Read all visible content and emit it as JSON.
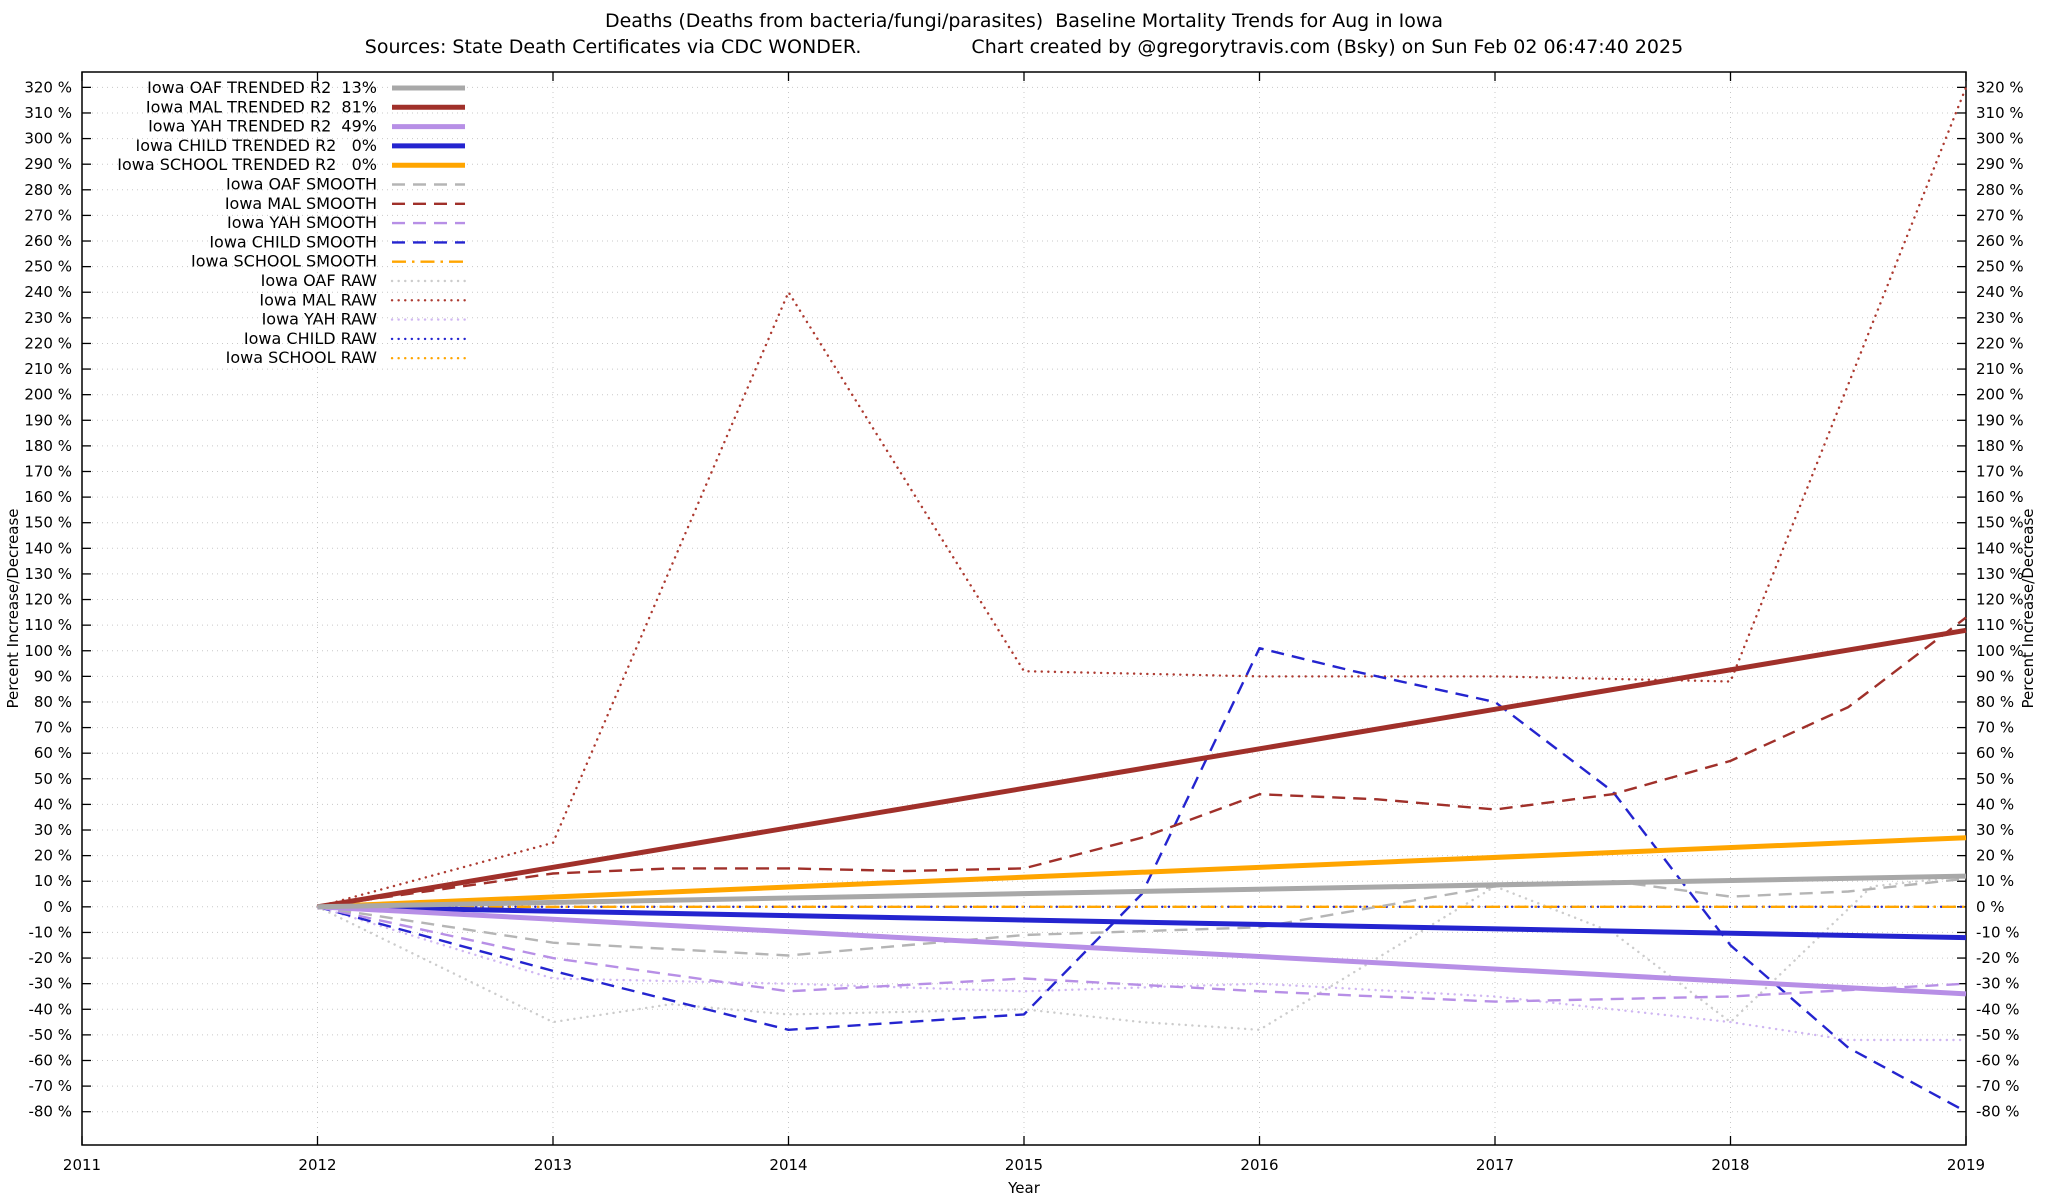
{
  "title": "Deaths (Deaths from bacteria/fungi/parasites)  Baseline Mortality Trends for Aug in Iowa",
  "subtitle_left": "Sources: State Death Certificates via CDC WONDER.",
  "subtitle_right": "Chart created by @gregorytravis.com (Bsky) on Sun Feb 02 06:47:40 2025",
  "chart_data": {
    "type": "line",
    "title": "Deaths (Deaths from bacteria/fungi/parasites)  Baseline Mortality Trends for Aug in Iowa",
    "xlabel": "Year",
    "ylabel_left": "Percent Increase/Decrease",
    "ylabel_right": "Percent Increase/Decrease",
    "xlim": [
      2011,
      2019
    ],
    "ylim": [
      -93,
      326
    ],
    "xticks": [
      2011,
      2012,
      2013,
      2014,
      2015,
      2016,
      2017,
      2018,
      2019
    ],
    "yticks": {
      "start": -80,
      "end": 320,
      "step": 10,
      "suffix": " %"
    },
    "grid": true,
    "legend_position": "top-left",
    "colors": {
      "oaf": "#a8a8a8",
      "oaf_raw": "#cccccc",
      "mal": "#a0302a",
      "mal_raw": "#ad3a30",
      "yah": "#b78fe6",
      "yah_raw": "#cfb6f2",
      "child": "#2424cf",
      "school": "#ffa500",
      "grid": "#c8c8c8",
      "border": "#000000"
    },
    "series": [
      {
        "id": "oaf-trended",
        "label": "Iowa OAF TRENDED R2  13%",
        "color": "#a8a8a8",
        "style": "solid",
        "width": 5,
        "x": [
          2012,
          2019
        ],
        "y": [
          0,
          12
        ]
      },
      {
        "id": "mal-trended",
        "label": "Iowa MAL TRENDED R2  81%",
        "color": "#a0302a",
        "style": "solid",
        "width": 5,
        "x": [
          2012,
          2019
        ],
        "y": [
          0,
          108
        ]
      },
      {
        "id": "yah-trended",
        "label": "Iowa YAH TRENDED R2  49%",
        "color": "#b78fe6",
        "style": "solid",
        "width": 5,
        "x": [
          2012,
          2019
        ],
        "y": [
          0,
          -34
        ]
      },
      {
        "id": "child-trended",
        "label": "Iowa CHILD TRENDED R2   0%",
        "color": "#2424cf",
        "style": "solid",
        "width": 5,
        "x": [
          2012,
          2019
        ],
        "y": [
          0,
          -12
        ]
      },
      {
        "id": "school-trended",
        "label": "Iowa SCHOOL TRENDED R2   0%",
        "color": "#ffa500",
        "style": "solid",
        "width": 5,
        "x": [
          2012,
          2019
        ],
        "y": [
          0,
          27
        ]
      },
      {
        "id": "oaf-smooth",
        "label": "Iowa OAF SMOOTH",
        "color": "#b5b5b5",
        "style": "dash",
        "width": 2.4,
        "x": [
          2012,
          2013,
          2014,
          2015,
          2016,
          2016.5,
          2017,
          2017.5,
          2018,
          2018.5,
          2019
        ],
        "y": [
          0,
          -14,
          -19,
          -11,
          -8,
          0,
          8,
          10,
          4,
          6,
          11
        ]
      },
      {
        "id": "mal-smooth",
        "label": "Iowa MAL SMOOTH",
        "color": "#a0302a",
        "style": "dash",
        "width": 2.4,
        "x": [
          2012,
          2013,
          2013.5,
          2014,
          2014.5,
          2015,
          2015.5,
          2016,
          2016.5,
          2017,
          2017.5,
          2018,
          2018.5,
          2019
        ],
        "y": [
          0,
          13,
          15,
          15,
          14,
          15,
          27,
          44,
          42,
          38,
          44,
          57,
          78,
          113
        ]
      },
      {
        "id": "yah-smooth",
        "label": "Iowa YAH SMOOTH",
        "color": "#b78fe6",
        "style": "dash",
        "width": 2.4,
        "x": [
          2012,
          2013,
          2014,
          2015,
          2016,
          2017,
          2018,
          2019
        ],
        "y": [
          0,
          -20,
          -33,
          -28,
          -33,
          -37,
          -35,
          -30
        ]
      },
      {
        "id": "child-smooth",
        "label": "Iowa CHILD SMOOTH",
        "color": "#2424cf",
        "style": "dash",
        "width": 2.4,
        "x": [
          2012,
          2013,
          2014,
          2014.5,
          2015,
          2015.5,
          2016,
          2016.4,
          2017,
          2017.5,
          2018,
          2018.5,
          2019
        ],
        "y": [
          0,
          -25,
          -48,
          -45,
          -42,
          5,
          101,
          92,
          80,
          45,
          -15,
          -55,
          -80
        ]
      },
      {
        "id": "school-smooth",
        "label": "Iowa SCHOOL SMOOTH",
        "color": "#ffa500",
        "style": "dashdot",
        "width": 2.4,
        "x": [
          2012,
          2019
        ],
        "y": [
          0,
          0
        ]
      },
      {
        "id": "oaf-raw",
        "label": "Iowa OAF RAW",
        "color": "#cccccc",
        "style": "dot",
        "width": 2.4,
        "x": [
          2012,
          2013,
          2013.5,
          2014,
          2015,
          2015.5,
          2016,
          2016.5,
          2017,
          2017.5,
          2018,
          2018.6,
          2019
        ],
        "y": [
          0,
          -45,
          -38,
          -42,
          -40,
          -45,
          -48,
          -20,
          8,
          -10,
          -45,
          8,
          12
        ]
      },
      {
        "id": "mal-raw",
        "label": "Iowa MAL RAW",
        "color": "#ad3a30",
        "style": "dot",
        "width": 2.4,
        "x": [
          2012,
          2012.8,
          2013,
          2014,
          2015,
          2016,
          2017,
          2018,
          2019
        ],
        "y": [
          0,
          20,
          25,
          240,
          92,
          90,
          90,
          88,
          320
        ]
      },
      {
        "id": "yah-raw",
        "label": "Iowa YAH RAW",
        "color": "#cfb6f2",
        "style": "dot",
        "width": 2.4,
        "x": [
          2012,
          2013,
          2014,
          2015,
          2016,
          2017,
          2018,
          2018.5,
          2019
        ],
        "y": [
          0,
          -28,
          -30,
          -33,
          -30,
          -35,
          -45,
          -52,
          -52
        ]
      },
      {
        "id": "child-raw",
        "label": "Iowa CHILD RAW",
        "color": "#2424cf",
        "style": "dot",
        "width": 2.4,
        "x": [
          2012,
          2019
        ],
        "y": [
          0,
          0
        ]
      },
      {
        "id": "school-raw",
        "label": "Iowa SCHOOL RAW",
        "color": "#ffa500",
        "style": "dot",
        "width": 2.4,
        "x": [
          2012,
          2019
        ],
        "y": [
          0,
          0
        ]
      }
    ]
  }
}
